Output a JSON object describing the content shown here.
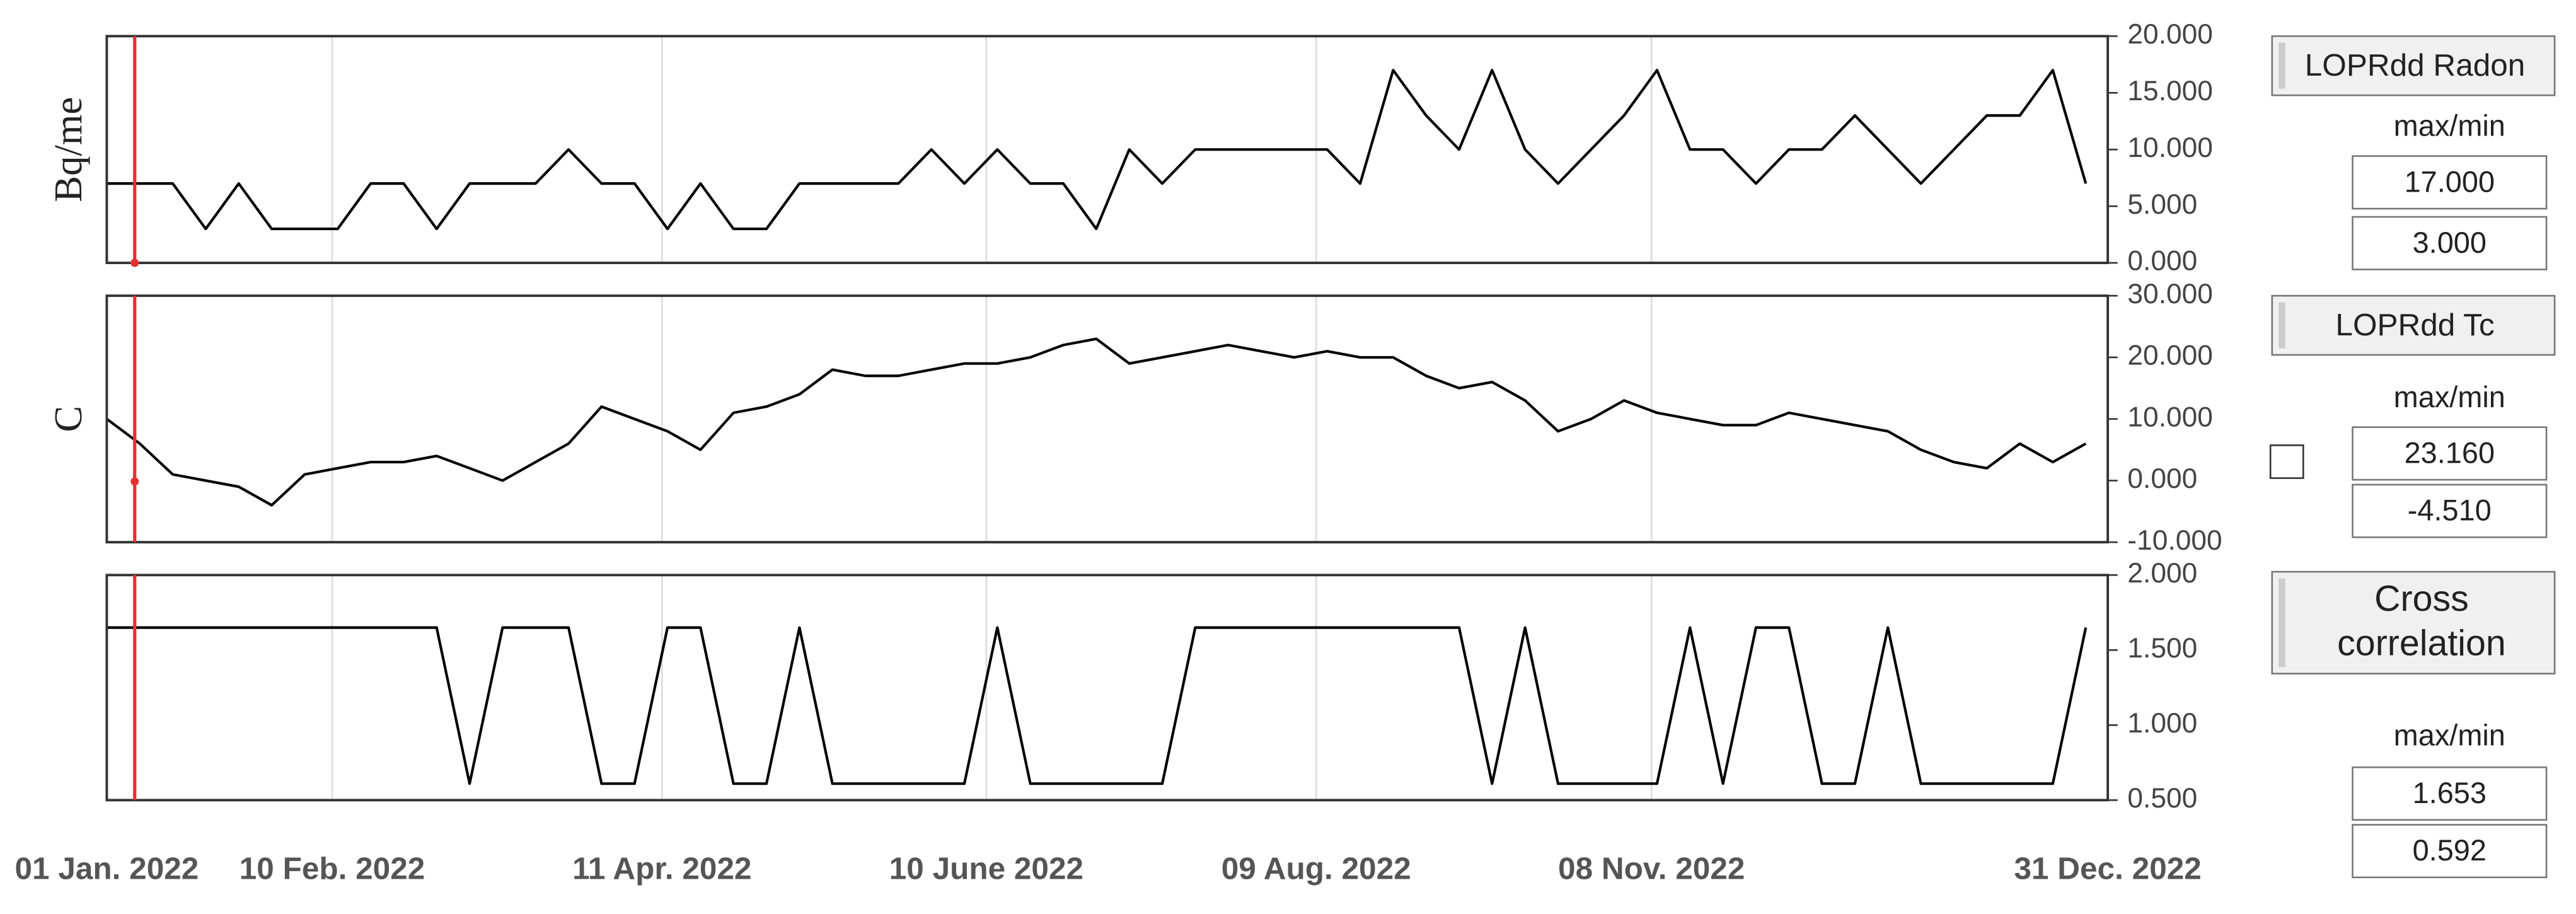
{
  "chart_data": [
    {
      "type": "line",
      "ylabel": "Bq/me",
      "color": "#000000",
      "grid": "x",
      "xlim": [
        0,
        364
      ],
      "xticks": [
        0,
        41,
        101,
        160,
        220,
        281,
        364
      ],
      "ylim": [
        0,
        20
      ],
      "yticks": [
        {
          "value": 0,
          "label": "0.000"
        },
        {
          "value": 5,
          "label": "5.000"
        },
        {
          "value": 10,
          "label": "10.000"
        },
        {
          "value": 15,
          "label": "15.000"
        },
        {
          "value": 20,
          "label": "20.000"
        }
      ],
      "x": [
        0,
        6,
        12,
        18,
        24,
        30,
        36,
        42,
        48,
        54,
        60,
        66,
        72,
        78,
        84,
        90,
        96,
        102,
        108,
        114,
        120,
        126,
        132,
        138,
        144,
        150,
        156,
        162,
        168,
        174,
        180,
        186,
        192,
        198,
        204,
        210,
        216,
        222,
        228,
        234,
        240,
        246,
        252,
        258,
        264,
        270,
        276,
        282,
        288,
        294,
        300,
        306,
        312,
        318,
        324,
        330,
        336,
        342,
        348,
        354,
        360
      ],
      "values": [
        7,
        7,
        7,
        3,
        7,
        3,
        3,
        3,
        7,
        7,
        3,
        7,
        7,
        7,
        10,
        7,
        7,
        3,
        7,
        3,
        3,
        7,
        7,
        7,
        7,
        10,
        7,
        10,
        7,
        7,
        3,
        10,
        7,
        10,
        10,
        10,
        10,
        10,
        7,
        17,
        13,
        10,
        17,
        10,
        7,
        10,
        13,
        17,
        10,
        10,
        7,
        10,
        10,
        13,
        10,
        7,
        10,
        13,
        13,
        17,
        7
      ]
    },
    {
      "type": "line",
      "ylabel": "C",
      "color": "#000000",
      "grid": "x",
      "xlim": [
        0,
        364
      ],
      "xticks": [
        0,
        41,
        101,
        160,
        220,
        281,
        364
      ],
      "ylim": [
        -10,
        30
      ],
      "yticks": [
        {
          "value": -10,
          "label": "-10.000"
        },
        {
          "value": 0,
          "label": "0.000"
        },
        {
          "value": 10,
          "label": "10.000"
        },
        {
          "value": 20,
          "label": "20.000"
        },
        {
          "value": 30,
          "label": "30.000"
        }
      ],
      "x": [
        0,
        6,
        12,
        18,
        24,
        30,
        36,
        42,
        48,
        54,
        60,
        66,
        72,
        78,
        84,
        90,
        96,
        102,
        108,
        114,
        120,
        126,
        132,
        138,
        144,
        150,
        156,
        162,
        168,
        174,
        180,
        186,
        192,
        198,
        204,
        210,
        216,
        222,
        228,
        234,
        240,
        246,
        252,
        258,
        264,
        270,
        276,
        282,
        288,
        294,
        300,
        306,
        312,
        318,
        324,
        330,
        336,
        342,
        348,
        354,
        360
      ],
      "values": [
        10,
        6,
        1,
        0,
        -1,
        -4,
        1,
        2,
        3,
        3,
        4,
        2,
        0,
        3,
        6,
        12,
        10,
        8,
        5,
        11,
        12,
        14,
        18,
        17,
        17,
        18,
        19,
        19,
        20,
        22,
        23,
        19,
        20,
        21,
        22,
        21,
        20,
        21,
        20,
        20,
        17,
        15,
        16,
        13,
        8,
        10,
        13,
        11,
        10,
        9,
        9,
        11,
        10,
        9,
        8,
        5,
        3,
        2,
        6,
        3,
        6
      ]
    },
    {
      "type": "line",
      "color": "#000000",
      "grid": "x",
      "xlim": [
        0,
        364
      ],
      "xticks": [
        {
          "value": 0,
          "label": "01 Jan. 2022"
        },
        {
          "value": 41,
          "label": "10 Feb. 2022"
        },
        {
          "value": 101,
          "label": "11 Apr. 2022"
        },
        {
          "value": 160,
          "label": "10 June 2022"
        },
        {
          "value": 220,
          "label": "09 Aug. 2022"
        },
        {
          "value": 281,
          "label": "08 Nov. 2022"
        },
        {
          "value": 364,
          "label": "31 Dec. 2022"
        }
      ],
      "ylim": [
        0.5,
        2
      ],
      "yticks": [
        {
          "value": 0.5,
          "label": "0.500"
        },
        {
          "value": 1,
          "label": "1.000"
        },
        {
          "value": 1.5,
          "label": "1.500"
        },
        {
          "value": 2,
          "label": "2.000"
        }
      ],
      "x": [
        0,
        6,
        12,
        18,
        24,
        30,
        36,
        42,
        48,
        54,
        60,
        66,
        72,
        78,
        84,
        90,
        96,
        102,
        108,
        114,
        120,
        126,
        132,
        138,
        144,
        150,
        156,
        162,
        168,
        174,
        180,
        186,
        192,
        198,
        204,
        210,
        216,
        222,
        228,
        234,
        240,
        246,
        252,
        258,
        264,
        270,
        276,
        282,
        288,
        294,
        300,
        306,
        312,
        318,
        324,
        330,
        336,
        342,
        348,
        354,
        360
      ],
      "values": [
        1.65,
        1.65,
        1.65,
        1.65,
        1.65,
        1.65,
        1.65,
        1.65,
        1.65,
        1.65,
        1.65,
        0.61,
        1.65,
        1.65,
        1.65,
        0.61,
        0.61,
        1.65,
        1.65,
        0.61,
        0.61,
        1.65,
        0.61,
        0.61,
        0.61,
        0.61,
        0.61,
        1.65,
        0.61,
        0.61,
        0.61,
        0.61,
        0.61,
        1.65,
        1.65,
        1.65,
        1.65,
        1.65,
        1.65,
        1.65,
        1.65,
        1.65,
        0.61,
        1.65,
        0.61,
        0.61,
        0.61,
        0.61,
        1.65,
        0.61,
        1.65,
        1.65,
        0.61,
        0.61,
        1.65,
        0.61,
        0.61,
        0.61,
        0.61,
        0.61,
        1.65
      ]
    }
  ],
  "panels": [
    {
      "button": [
        "LOPRdd Radon"
      ],
      "caption": "max/min",
      "max": "17.000",
      "min": "3.000"
    },
    {
      "button": [
        "LOPRdd Tc"
      ],
      "caption": "max/min",
      "max": "23.160",
      "min": "-4.510"
    },
    {
      "button": [
        "Cross",
        "correlation"
      ],
      "caption": "max/min",
      "max": "1.653",
      "min": "0.592"
    }
  ]
}
